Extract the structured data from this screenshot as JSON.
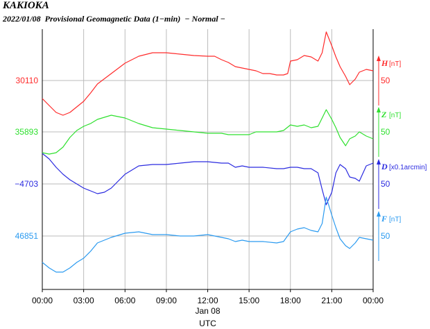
{
  "header": {
    "station": "KAKIOKA",
    "subtitle": "2022/01/08  Provisional Geomagnetic Data (1−min)  − Normal −"
  },
  "chart_data": {
    "type": "line",
    "x_ticks": [
      "00:00",
      "03:00",
      "06:00",
      "09:00",
      "12:00",
      "15:00",
      "18:00",
      "21:00",
      "00:00"
    ],
    "x_date_label": "Jan 08",
    "x_unit_label": "UTC",
    "x_range_hours": [
      0,
      24
    ],
    "grid": true,
    "series": [
      {
        "name": "H",
        "unit": "[nT]",
        "color": "#ff2a2a",
        "baseline": "30110",
        "scale": "50",
        "points": [
          [
            0,
            -26
          ],
          [
            0.5,
            -36
          ],
          [
            1,
            -46
          ],
          [
            1.5,
            -50
          ],
          [
            2,
            -46
          ],
          [
            2.5,
            -38
          ],
          [
            3,
            -30
          ],
          [
            3.5,
            -18
          ],
          [
            4,
            -5
          ],
          [
            5,
            10
          ],
          [
            6,
            25
          ],
          [
            7,
            35
          ],
          [
            8,
            40
          ],
          [
            9,
            40
          ],
          [
            10,
            38
          ],
          [
            11,
            36
          ],
          [
            12,
            35
          ],
          [
            12.5,
            35
          ],
          [
            13,
            30
          ],
          [
            13.5,
            26
          ],
          [
            14,
            20
          ],
          [
            14.5,
            18
          ],
          [
            15,
            16
          ],
          [
            15.5,
            14
          ],
          [
            16,
            10
          ],
          [
            16.5,
            10
          ],
          [
            17,
            8
          ],
          [
            17.5,
            8
          ],
          [
            17.8,
            10
          ],
          [
            18,
            28
          ],
          [
            18.5,
            30
          ],
          [
            19,
            36
          ],
          [
            19.5,
            34
          ],
          [
            20,
            28
          ],
          [
            20.3,
            40
          ],
          [
            20.6,
            70
          ],
          [
            21,
            50
          ],
          [
            21.3,
            34
          ],
          [
            21.6,
            20
          ],
          [
            22,
            6
          ],
          [
            22.3,
            -6
          ],
          [
            22.7,
            2
          ],
          [
            23,
            12
          ],
          [
            23.5,
            16
          ],
          [
            24,
            14
          ]
        ]
      },
      {
        "name": "Z",
        "unit": "[nT]",
        "color": "#2ee02e",
        "baseline": "35893",
        "scale": "50",
        "points": [
          [
            0,
            -30
          ],
          [
            0.5,
            -32
          ],
          [
            1,
            -30
          ],
          [
            1.5,
            -22
          ],
          [
            2,
            -8
          ],
          [
            2.5,
            2
          ],
          [
            3,
            8
          ],
          [
            3.5,
            12
          ],
          [
            4,
            18
          ],
          [
            5,
            24
          ],
          [
            6,
            20
          ],
          [
            7,
            12
          ],
          [
            8,
            6
          ],
          [
            9,
            4
          ],
          [
            10,
            2
          ],
          [
            11,
            0
          ],
          [
            12,
            -2
          ],
          [
            13,
            -2
          ],
          [
            13.5,
            -4
          ],
          [
            14,
            -4
          ],
          [
            15,
            -4
          ],
          [
            15.5,
            0
          ],
          [
            16,
            0
          ],
          [
            16.5,
            0
          ],
          [
            17,
            0
          ],
          [
            17.5,
            2
          ],
          [
            18,
            10
          ],
          [
            18.5,
            8
          ],
          [
            19,
            10
          ],
          [
            19.5,
            6
          ],
          [
            20,
            8
          ],
          [
            20.3,
            20
          ],
          [
            20.6,
            32
          ],
          [
            21,
            18
          ],
          [
            21.3,
            6
          ],
          [
            21.6,
            -8
          ],
          [
            22,
            -20
          ],
          [
            22.3,
            -10
          ],
          [
            22.7,
            -6
          ],
          [
            23,
            0
          ],
          [
            23.5,
            -6
          ],
          [
            24,
            -10
          ]
        ]
      },
      {
        "name": "D",
        "unit": "[x0.1arcmin]",
        "color": "#2a2ae0",
        "baseline": "−4703",
        "scale": "50",
        "points": [
          [
            0,
            44
          ],
          [
            0.5,
            36
          ],
          [
            1,
            24
          ],
          [
            1.5,
            14
          ],
          [
            2,
            6
          ],
          [
            2.5,
            0
          ],
          [
            3,
            -6
          ],
          [
            3.5,
            -10
          ],
          [
            4,
            -14
          ],
          [
            4.5,
            -12
          ],
          [
            5,
            -6
          ],
          [
            5.5,
            4
          ],
          [
            6,
            14
          ],
          [
            7,
            26
          ],
          [
            8,
            28
          ],
          [
            9,
            28
          ],
          [
            10,
            30
          ],
          [
            11,
            32
          ],
          [
            12,
            32
          ],
          [
            13,
            30
          ],
          [
            13.5,
            30
          ],
          [
            14,
            24
          ],
          [
            14.5,
            26
          ],
          [
            15,
            24
          ],
          [
            15.5,
            24
          ],
          [
            16,
            24
          ],
          [
            17,
            22
          ],
          [
            17.5,
            22
          ],
          [
            18,
            24
          ],
          [
            18.5,
            24
          ],
          [
            19,
            22
          ],
          [
            19.5,
            22
          ],
          [
            20,
            16
          ],
          [
            20.3,
            -8
          ],
          [
            20.6,
            -30
          ],
          [
            21,
            -12
          ],
          [
            21.3,
            16
          ],
          [
            21.6,
            28
          ],
          [
            22,
            22
          ],
          [
            22.3,
            10
          ],
          [
            22.7,
            8
          ],
          [
            23,
            4
          ],
          [
            23.5,
            26
          ],
          [
            24,
            30
          ]
        ]
      },
      {
        "name": "F",
        "unit": "[nT]",
        "color": "#2a9af0",
        "baseline": "46851",
        "scale": "50",
        "points": [
          [
            0,
            -38
          ],
          [
            0.5,
            -46
          ],
          [
            1,
            -52
          ],
          [
            1.5,
            -52
          ],
          [
            2,
            -46
          ],
          [
            2.5,
            -38
          ],
          [
            3,
            -32
          ],
          [
            3.5,
            -22
          ],
          [
            4,
            -10
          ],
          [
            5,
            -2
          ],
          [
            6,
            4
          ],
          [
            7,
            6
          ],
          [
            8,
            2
          ],
          [
            9,
            2
          ],
          [
            10,
            0
          ],
          [
            11,
            0
          ],
          [
            12,
            2
          ],
          [
            13,
            -2
          ],
          [
            13.5,
            -4
          ],
          [
            14,
            -8
          ],
          [
            14.5,
            -6
          ],
          [
            15,
            -8
          ],
          [
            15.5,
            -8
          ],
          [
            16,
            -8
          ],
          [
            17,
            -10
          ],
          [
            17.5,
            -8
          ],
          [
            18,
            6
          ],
          [
            18.5,
            10
          ],
          [
            19,
            12
          ],
          [
            19.5,
            8
          ],
          [
            20,
            6
          ],
          [
            20.3,
            18
          ],
          [
            20.6,
            56
          ],
          [
            21,
            30
          ],
          [
            21.3,
            12
          ],
          [
            21.6,
            -4
          ],
          [
            22,
            -14
          ],
          [
            22.3,
            -18
          ],
          [
            22.7,
            -10
          ],
          [
            23,
            -2
          ],
          [
            23.5,
            -4
          ],
          [
            24,
            -6
          ]
        ]
      }
    ]
  }
}
